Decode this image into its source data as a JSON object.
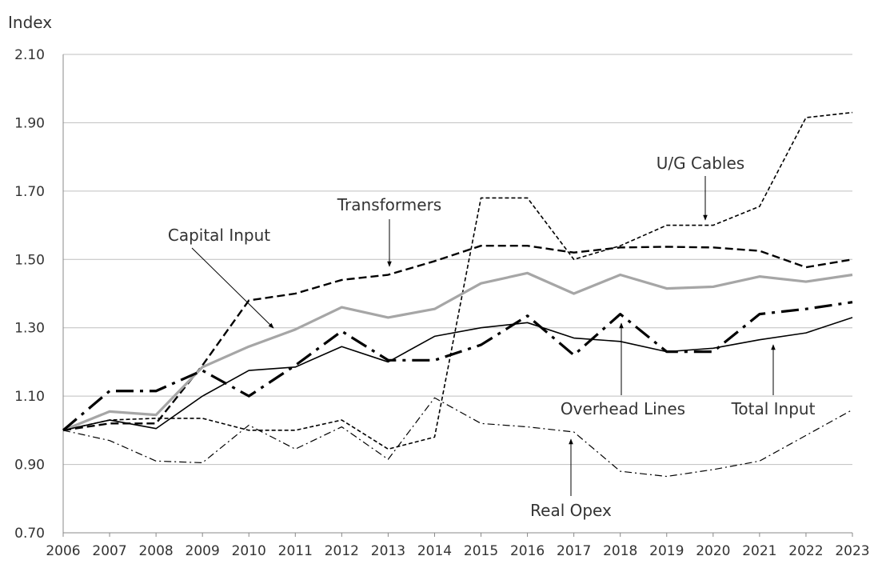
{
  "chart_data": {
    "type": "line",
    "y_label": "Index",
    "categories": [
      "2006",
      "2007",
      "2008",
      "2009",
      "2010",
      "2011",
      "2012",
      "2013",
      "2014",
      "2015",
      "2016",
      "2017",
      "2018",
      "2019",
      "2020",
      "2021",
      "2022",
      "2023"
    ],
    "ylim": [
      0.7,
      2.1
    ],
    "yticks": [
      {
        "value": 0.7,
        "label": "0.70"
      },
      {
        "value": 0.9,
        "label": "0.90"
      },
      {
        "value": 1.1,
        "label": "1.10"
      },
      {
        "value": 1.3,
        "label": "1.30"
      },
      {
        "value": 1.5,
        "label": "1.50"
      },
      {
        "value": 1.7,
        "label": "1.70"
      },
      {
        "value": 1.9,
        "label": "1.90"
      },
      {
        "value": 2.1,
        "label": "2.10"
      }
    ],
    "grid": true,
    "series": [
      {
        "name": "U/G Cables",
        "color": "#000000",
        "values": [
          1.0,
          1.03,
          1.035,
          1.035,
          1.0,
          1.0,
          1.03,
          0.945,
          0.98,
          1.68,
          1.68,
          1.5,
          1.54,
          1.6,
          1.6,
          1.655,
          1.915,
          1.93
        ]
      },
      {
        "name": "Transformers",
        "color": "#000000",
        "values": [
          1.0,
          1.02,
          1.02,
          1.19,
          1.38,
          1.4,
          1.44,
          1.455,
          1.495,
          1.54,
          1.54,
          1.52,
          1.535,
          1.537,
          1.535,
          1.525,
          1.477,
          1.5
        ]
      },
      {
        "name": "Capital Input",
        "color": "#a6a6a6",
        "values": [
          1.0,
          1.055,
          1.045,
          1.185,
          1.245,
          1.295,
          1.36,
          1.33,
          1.355,
          1.43,
          1.46,
          1.4,
          1.455,
          1.415,
          1.42,
          1.45,
          1.435,
          1.455
        ]
      },
      {
        "name": "Overhead Lines",
        "color": "#000000",
        "values": [
          1.0,
          1.115,
          1.115,
          1.175,
          1.1,
          1.19,
          1.29,
          1.205,
          1.205,
          1.25,
          1.335,
          1.22,
          1.34,
          1.23,
          1.23,
          1.34,
          1.355,
          1.375
        ]
      },
      {
        "name": "Total Input",
        "color": "#000000",
        "values": [
          1.0,
          1.03,
          1.005,
          1.1,
          1.175,
          1.185,
          1.245,
          1.2,
          1.275,
          1.3,
          1.315,
          1.27,
          1.26,
          1.23,
          1.24,
          1.265,
          1.285,
          1.33
        ]
      },
      {
        "name": "Real Opex",
        "color": "#000000",
        "values": [
          1.0,
          0.97,
          0.91,
          0.905,
          1.015,
          0.945,
          1.01,
          0.915,
          1.095,
          1.02,
          1.01,
          0.995,
          0.88,
          0.865,
          0.885,
          0.91,
          0.985,
          1.06
        ]
      }
    ]
  }
}
